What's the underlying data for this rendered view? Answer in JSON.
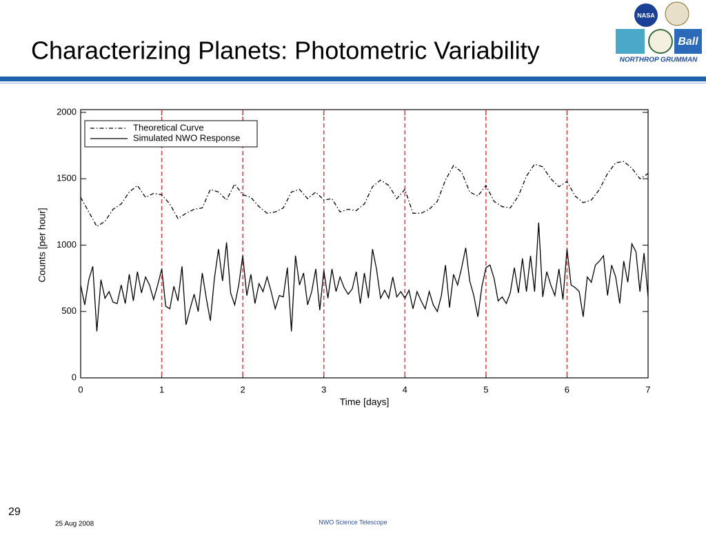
{
  "slide": {
    "title": "Characterizing Planets: Photometric Variability",
    "page_number": "29",
    "date": "25 Aug 2008",
    "footer": "NWO Science Telescope",
    "logos": [
      "NASA",
      "Ball",
      "NORTHROP GRUMMAN"
    ]
  },
  "chart_data": {
    "type": "line",
    "xlabel": "Time [days]",
    "ylabel": "Counts [per hour]",
    "xlim": [
      0,
      7
    ],
    "xticks": [
      0,
      1,
      2,
      3,
      4,
      5,
      6,
      7
    ],
    "ylim": [
      0,
      2000
    ],
    "yticks": [
      0,
      500,
      1000,
      1500,
      2000
    ],
    "vlines": [
      1,
      2,
      3,
      4,
      5,
      6
    ],
    "vline_color": "#e0393b",
    "legend": "upper left",
    "series": [
      {
        "name": "Theoretical Curve",
        "color": "#000000",
        "style": "dashdot",
        "x": [
          0,
          0.1,
          0.2,
          0.3,
          0.4,
          0.5,
          0.6,
          0.7,
          0.8,
          0.9,
          1,
          1.1,
          1.2,
          1.3,
          1.4,
          1.5,
          1.6,
          1.7,
          1.8,
          1.9,
          2,
          2.1,
          2.2,
          2.3,
          2.4,
          2.5,
          2.6,
          2.7,
          2.8,
          2.9,
          3,
          3.1,
          3.2,
          3.3,
          3.4,
          3.5,
          3.6,
          3.7,
          3.8,
          3.9,
          4,
          4.1,
          4.2,
          4.3,
          4.4,
          4.5,
          4.6,
          4.7,
          4.8,
          4.9,
          5,
          5.1,
          5.2,
          5.3,
          5.4,
          5.5,
          5.6,
          5.7,
          5.8,
          5.9,
          6,
          6.1,
          6.2,
          6.3,
          6.4,
          6.5,
          6.6,
          6.7,
          6.8,
          6.9,
          7
        ],
        "values": [
          1360,
          1250,
          1140,
          1180,
          1270,
          1310,
          1400,
          1450,
          1360,
          1390,
          1380,
          1310,
          1200,
          1240,
          1270,
          1280,
          1420,
          1400,
          1340,
          1460,
          1380,
          1360,
          1290,
          1240,
          1250,
          1280,
          1400,
          1420,
          1350,
          1400,
          1340,
          1350,
          1250,
          1270,
          1260,
          1310,
          1440,
          1490,
          1450,
          1350,
          1420,
          1240,
          1240,
          1270,
          1330,
          1490,
          1600,
          1550,
          1400,
          1370,
          1450,
          1330,
          1290,
          1280,
          1370,
          1520,
          1610,
          1590,
          1500,
          1440,
          1480,
          1370,
          1320,
          1340,
          1420,
          1540,
          1620,
          1630,
          1580,
          1500,
          1540
        ]
      },
      {
        "name": "Simulated NWO Response",
        "color": "#000000",
        "style": "solid",
        "x": [
          0,
          0.05,
          0.1,
          0.15,
          0.2,
          0.25,
          0.3,
          0.35,
          0.4,
          0.45,
          0.5,
          0.55,
          0.6,
          0.65,
          0.7,
          0.75,
          0.8,
          0.85,
          0.9,
          0.95,
          1,
          1.05,
          1.1,
          1.15,
          1.2,
          1.25,
          1.3,
          1.35,
          1.4,
          1.45,
          1.5,
          1.55,
          1.6,
          1.65,
          1.7,
          1.75,
          1.8,
          1.85,
          1.9,
          1.95,
          2,
          2.05,
          2.1,
          2.15,
          2.2,
          2.25,
          2.3,
          2.35,
          2.4,
          2.45,
          2.5,
          2.55,
          2.6,
          2.65,
          2.7,
          2.75,
          2.8,
          2.85,
          2.9,
          2.95,
          3,
          3.05,
          3.1,
          3.15,
          3.2,
          3.25,
          3.3,
          3.35,
          3.4,
          3.45,
          3.5,
          3.55,
          3.6,
          3.65,
          3.7,
          3.75,
          3.8,
          3.85,
          3.9,
          3.95,
          4,
          4.05,
          4.1,
          4.15,
          4.2,
          4.25,
          4.3,
          4.35,
          4.4,
          4.45,
          4.5,
          4.55,
          4.6,
          4.65,
          4.7,
          4.75,
          4.8,
          4.85,
          4.9,
          4.95,
          5,
          5.05,
          5.1,
          5.15,
          5.2,
          5.25,
          5.3,
          5.35,
          5.4,
          5.45,
          5.5,
          5.55,
          5.6,
          5.65,
          5.7,
          5.75,
          5.8,
          5.85,
          5.9,
          5.95,
          6,
          6.05,
          6.1,
          6.15,
          6.2,
          6.25,
          6.3,
          6.35,
          6.4,
          6.45,
          6.5,
          6.55,
          6.6,
          6.65,
          6.7,
          6.75,
          6.8,
          6.85,
          6.9,
          6.95,
          7
        ],
        "values": [
          700,
          550,
          740,
          840,
          350,
          740,
          600,
          650,
          570,
          560,
          700,
          560,
          780,
          580,
          800,
          640,
          760,
          700,
          590,
          700,
          820,
          540,
          520,
          690,
          580,
          840,
          400,
          520,
          630,
          500,
          790,
          600,
          430,
          750,
          970,
          730,
          1020,
          640,
          550,
          700,
          920,
          620,
          780,
          560,
          710,
          650,
          760,
          650,
          520,
          620,
          610,
          830,
          350,
          920,
          700,
          790,
          550,
          650,
          820,
          510,
          810,
          600,
          820,
          650,
          760,
          680,
          630,
          670,
          800,
          560,
          790,
          600,
          970,
          820,
          600,
          660,
          600,
          760,
          610,
          650,
          600,
          660,
          520,
          650,
          580,
          520,
          650,
          550,
          500,
          620,
          850,
          530,
          780,
          700,
          830,
          980,
          730,
          620,
          460,
          690,
          830,
          850,
          750,
          580,
          610,
          560,
          640,
          830,
          640,
          900,
          650,
          920,
          650,
          1170,
          610,
          800,
          700,
          620,
          820,
          590,
          970,
          700,
          680,
          650,
          460,
          760,
          720,
          850,
          880,
          920,
          620,
          850,
          760,
          560,
          880,
          720,
          1010,
          950,
          650,
          940,
          610
        ]
      }
    ]
  }
}
